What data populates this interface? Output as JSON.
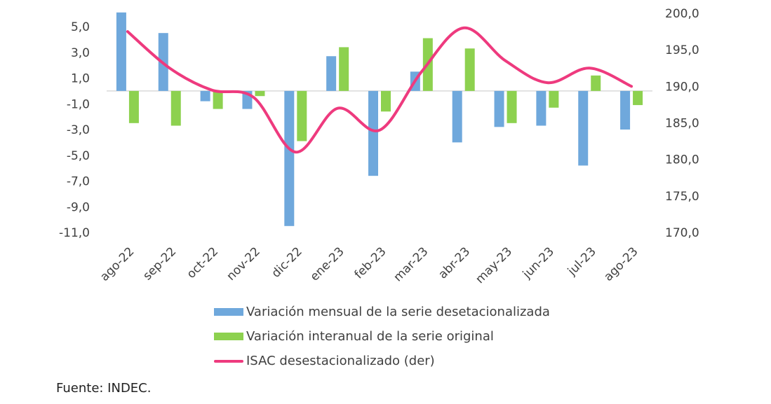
{
  "colors": {
    "monthly": "#6FA8DC",
    "annual": "#8DD14F",
    "isac": "#EE3A7E",
    "axis": "#D9D9D9"
  },
  "chart_data": {
    "type": "bar",
    "categories": [
      "ago-22",
      "sep-22",
      "oct-22",
      "nov-22",
      "dic-22",
      "ene-23",
      "feb-23",
      "mar-23",
      "abr-23",
      "may-23",
      "jun-23",
      "jul-23",
      "ago-23"
    ],
    "series": [
      {
        "name": "Variación mensual de la serie desetacionalizada",
        "type": "bar",
        "axis": "left",
        "values": [
          6.1,
          4.5,
          -0.8,
          -1.4,
          -10.5,
          2.7,
          -6.6,
          1.5,
          -4.0,
          -2.8,
          -2.7,
          -5.8,
          -3.0
        ]
      },
      {
        "name": "Variación interanual de la serie original",
        "type": "bar",
        "axis": "left",
        "values": [
          -2.5,
          -2.7,
          -1.4,
          -0.4,
          -3.9,
          3.4,
          -1.6,
          4.1,
          3.3,
          -2.5,
          -1.3,
          1.2,
          -1.1
        ]
      },
      {
        "name": "ISAC desestacionalizado (der)",
        "type": "line",
        "axis": "right",
        "values": [
          197.5,
          192.5,
          189.5,
          188.5,
          181.0,
          187.0,
          184.0,
          192.0,
          198.0,
          193.5,
          190.5,
          192.5,
          190.0
        ]
      }
    ],
    "left_axis": {
      "ticks": [
        "5,0",
        "3,0",
        "1,0",
        "-1,0",
        "-3,0",
        "-5,0",
        "-7,0",
        "-9,0",
        "-11,0"
      ],
      "ylim": [
        -11,
        6
      ]
    },
    "right_axis": {
      "ticks": [
        "200,0",
        "195,0",
        "190,0",
        "185,0",
        "180,0",
        "175,0",
        "170,0"
      ],
      "ylim": [
        170,
        200
      ]
    },
    "grid": false,
    "legend_position": "bottom"
  },
  "legend": {
    "monthly": "Variación mensual de la serie desetacionalizada",
    "annual": "Variación interanual de la serie original",
    "isac": "ISAC desestacionalizado (der)"
  },
  "source": "Fuente: INDEC."
}
